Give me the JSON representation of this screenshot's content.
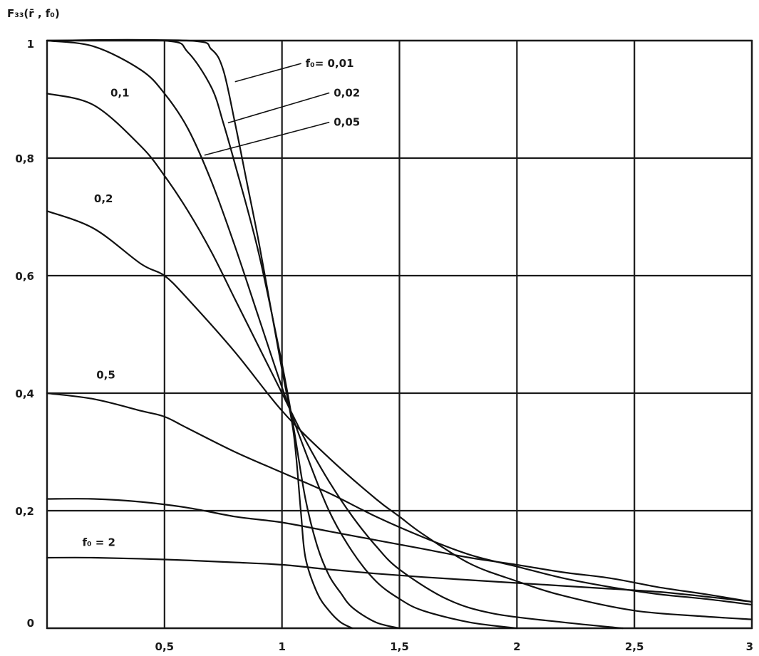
{
  "chart_data": {
    "type": "line",
    "title": "F₃₃(r̄ , f₀)",
    "xlabel": "",
    "ylabel": "",
    "xlim": [
      0,
      3
    ],
    "ylim": [
      0,
      1
    ],
    "grid": true,
    "x_ticks": [
      "0,5",
      "1",
      "1,5",
      "2",
      "2,5",
      "3"
    ],
    "y_ticks": [
      "0",
      "0,2",
      "0,4",
      "0,6",
      "0,8",
      "1"
    ],
    "series": [
      {
        "name": "f₀= 0,01",
        "values": [
          [
            0,
            1.0
          ],
          [
            0.6,
            1.0
          ],
          [
            0.7,
            0.985
          ],
          [
            0.75,
            0.95
          ],
          [
            0.8,
            0.86
          ],
          [
            0.85,
            0.76
          ],
          [
            0.9,
            0.66
          ],
          [
            0.95,
            0.55
          ],
          [
            1.0,
            0.44
          ],
          [
            1.05,
            0.33
          ],
          [
            1.08,
            0.2
          ],
          [
            1.1,
            0.12
          ],
          [
            1.15,
            0.06
          ],
          [
            1.2,
            0.03
          ],
          [
            1.25,
            0.01
          ],
          [
            1.3,
            0.0
          ]
        ]
      },
      {
        "name": "0,02",
        "values": [
          [
            0,
            1.0
          ],
          [
            0.5,
            1.0
          ],
          [
            0.6,
            0.98
          ],
          [
            0.7,
            0.92
          ],
          [
            0.75,
            0.86
          ],
          [
            0.8,
            0.79
          ],
          [
            0.9,
            0.64
          ],
          [
            1.0,
            0.45
          ],
          [
            1.05,
            0.34
          ],
          [
            1.1,
            0.22
          ],
          [
            1.15,
            0.14
          ],
          [
            1.2,
            0.09
          ],
          [
            1.25,
            0.06
          ],
          [
            1.3,
            0.035
          ],
          [
            1.4,
            0.01
          ],
          [
            1.5,
            0.0
          ]
        ]
      },
      {
        "name": "0,05",
        "values": [
          [
            0,
            1.0
          ],
          [
            0.2,
            0.99
          ],
          [
            0.4,
            0.95
          ],
          [
            0.5,
            0.91
          ],
          [
            0.6,
            0.85
          ],
          [
            0.7,
            0.76
          ],
          [
            0.8,
            0.65
          ],
          [
            0.9,
            0.53
          ],
          [
            1.0,
            0.41
          ],
          [
            1.1,
            0.3
          ],
          [
            1.2,
            0.2
          ],
          [
            1.3,
            0.13
          ],
          [
            1.4,
            0.08
          ],
          [
            1.5,
            0.05
          ],
          [
            1.6,
            0.03
          ],
          [
            1.8,
            0.01
          ],
          [
            2.0,
            0.0
          ]
        ]
      },
      {
        "name": "0,1",
        "values": [
          [
            0,
            0.91
          ],
          [
            0.2,
            0.89
          ],
          [
            0.4,
            0.82
          ],
          [
            0.5,
            0.77
          ],
          [
            0.6,
            0.71
          ],
          [
            0.7,
            0.64
          ],
          [
            0.8,
            0.56
          ],
          [
            0.9,
            0.48
          ],
          [
            1.0,
            0.4
          ],
          [
            1.1,
            0.32
          ],
          [
            1.2,
            0.25
          ],
          [
            1.3,
            0.19
          ],
          [
            1.4,
            0.14
          ],
          [
            1.5,
            0.1
          ],
          [
            1.7,
            0.05
          ],
          [
            1.9,
            0.025
          ],
          [
            2.2,
            0.01
          ],
          [
            2.45,
            0.0
          ]
        ]
      },
      {
        "name": "0,2",
        "values": [
          [
            0,
            0.71
          ],
          [
            0.2,
            0.68
          ],
          [
            0.4,
            0.62
          ],
          [
            0.5,
            0.6
          ],
          [
            0.6,
            0.56
          ],
          [
            0.8,
            0.47
          ],
          [
            1.0,
            0.37
          ],
          [
            1.2,
            0.29
          ],
          [
            1.4,
            0.22
          ],
          [
            1.5,
            0.19
          ],
          [
            1.6,
            0.16
          ],
          [
            1.8,
            0.11
          ],
          [
            2.0,
            0.08
          ],
          [
            2.2,
            0.055
          ],
          [
            2.5,
            0.03
          ],
          [
            2.8,
            0.02
          ],
          [
            3.0,
            0.015
          ]
        ]
      },
      {
        "name": "0,5",
        "values": [
          [
            0,
            0.4
          ],
          [
            0.2,
            0.39
          ],
          [
            0.4,
            0.37
          ],
          [
            0.5,
            0.36
          ],
          [
            0.6,
            0.34
          ],
          [
            0.8,
            0.3
          ],
          [
            1.0,
            0.265
          ],
          [
            1.2,
            0.23
          ],
          [
            1.4,
            0.19
          ],
          [
            1.6,
            0.155
          ],
          [
            1.8,
            0.125
          ],
          [
            2.0,
            0.105
          ],
          [
            2.2,
            0.085
          ],
          [
            2.4,
            0.07
          ],
          [
            2.6,
            0.058
          ],
          [
            2.8,
            0.05
          ],
          [
            3.0,
            0.04
          ]
        ]
      },
      {
        "name": "",
        "values": [
          [
            0,
            0.22
          ],
          [
            0.2,
            0.22
          ],
          [
            0.4,
            0.215
          ],
          [
            0.6,
            0.205
          ],
          [
            0.8,
            0.19
          ],
          [
            1.0,
            0.18
          ],
          [
            1.2,
            0.165
          ],
          [
            1.4,
            0.15
          ],
          [
            1.6,
            0.135
          ],
          [
            1.8,
            0.12
          ],
          [
            2.0,
            0.108
          ],
          [
            2.2,
            0.095
          ],
          [
            2.4,
            0.085
          ],
          [
            2.6,
            0.07
          ],
          [
            2.8,
            0.058
          ],
          [
            3.0,
            0.045
          ]
        ]
      },
      {
        "name": "f₀ = 2",
        "values": [
          [
            0,
            0.12
          ],
          [
            0.2,
            0.12
          ],
          [
            0.5,
            0.117
          ],
          [
            0.8,
            0.112
          ],
          [
            1.0,
            0.108
          ],
          [
            1.2,
            0.1
          ],
          [
            1.4,
            0.093
          ],
          [
            1.6,
            0.087
          ],
          [
            1.8,
            0.082
          ],
          [
            2.0,
            0.077
          ],
          [
            2.2,
            0.072
          ],
          [
            2.4,
            0.067
          ],
          [
            2.6,
            0.062
          ],
          [
            2.8,
            0.054
          ],
          [
            3.0,
            0.045
          ]
        ]
      }
    ],
    "curve_labels": [
      {
        "text": "f₀= 0,01",
        "at": [
          1.1,
          0.955
        ],
        "anchor": [
          0.8,
          0.93
        ]
      },
      {
        "text": "0,02",
        "at": [
          1.22,
          0.905
        ],
        "anchor": [
          0.77,
          0.86
        ]
      },
      {
        "text": "0,05",
        "at": [
          1.22,
          0.855
        ],
        "anchor": [
          0.67,
          0.805
        ]
      },
      {
        "text": "0,1",
        "at": [
          0.27,
          0.905
        ]
      },
      {
        "text": "0,2",
        "at": [
          0.2,
          0.725
        ]
      },
      {
        "text": "0,5",
        "at": [
          0.21,
          0.425
        ]
      },
      {
        "text": "f₀ = 2",
        "at": [
          0.15,
          0.14
        ]
      }
    ]
  }
}
